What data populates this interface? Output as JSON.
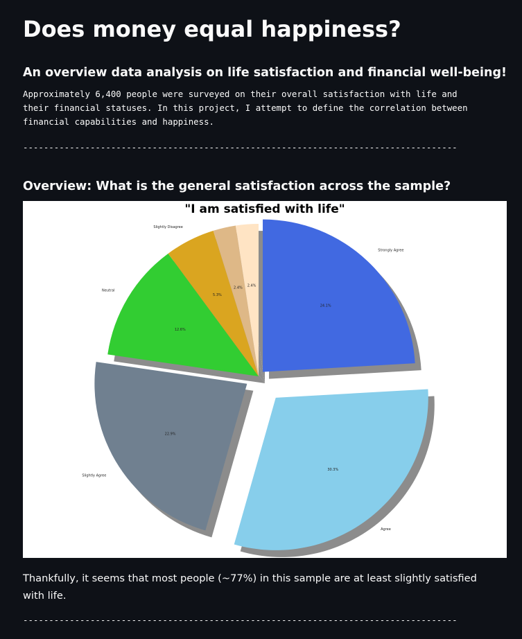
{
  "page": {
    "title": "Does money equal happiness?",
    "subtitle": "An overview data analysis on life satisfaction and financial well-being!",
    "intro": "Approximately 6,400 people were surveyed on their overall satisfaction with life and\ntheir financial statuses. In this project, I attempt to define the correlation between\nfinancial capabilities and happiness.",
    "divider": "------------------------------------------------------------------------------------",
    "section_heading": "Overview: What is the general satisfaction across the sample?",
    "closing": "Thankfully, it seems that most people (~77%) in this sample are at least slightly satisfied with life."
  },
  "colors": {
    "background": "#0e1117",
    "text": "#fafafa",
    "shadow": "#8c8c8c"
  },
  "chart_data": {
    "type": "pie",
    "title": "\"I am satisfied with life\"",
    "start_angle_deg": 90,
    "direction": "clockwise",
    "shadow": true,
    "slices": [
      {
        "label": "Strongly Agree",
        "pct_label": "24.1%",
        "value": 24.1,
        "color": "#4169e1",
        "explode": 0.04
      },
      {
        "label": "Agree",
        "pct_label": "30.3%",
        "value": 30.3,
        "color": "#87ceeb",
        "explode": 0.18
      },
      {
        "label": "Slightly Agree",
        "pct_label": "22.9%",
        "value": 22.9,
        "color": "#708090",
        "explode": 0.09
      },
      {
        "label": "Neutral",
        "pct_label": "12.6%",
        "value": 12.6,
        "color": "#32cd32",
        "explode": 0
      },
      {
        "label": "Slightly Disagree",
        "pct_label": "5.3%",
        "value": 5.3,
        "color": "#daa520",
        "explode": 0
      },
      {
        "label": "",
        "pct_label": "2.4%",
        "value": 2.4,
        "color": "#deb887",
        "explode": 0
      },
      {
        "label": "",
        "pct_label": "2.4%",
        "value": 2.4,
        "color": "#ffe4c4",
        "explode": 0
      }
    ]
  }
}
